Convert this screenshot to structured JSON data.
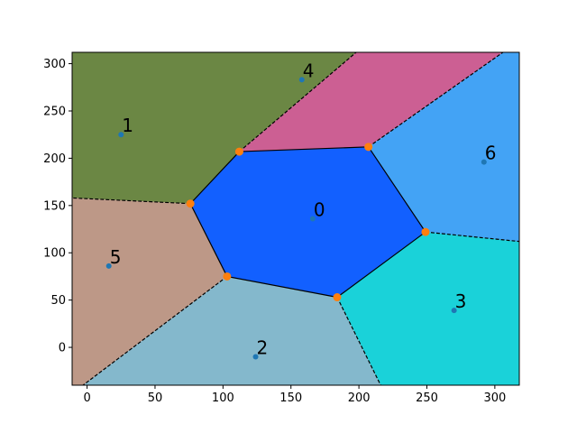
{
  "chart_data": {
    "type": "scatter",
    "subtype": "voronoi",
    "title": "",
    "xlabel": "",
    "ylabel": "",
    "xlim": [
      -11,
      318
    ],
    "ylim": [
      -40,
      312
    ],
    "xticks": [
      0,
      50,
      100,
      150,
      200,
      250,
      300
    ],
    "yticks": [
      0,
      50,
      100,
      150,
      200,
      250,
      300
    ],
    "grid": false,
    "colors": {
      "points": "#1f77b4",
      "vertices": "#ff7f0e",
      "edges": "#000000"
    },
    "points": [
      {
        "label": "0",
        "x": 166,
        "y": 136
      },
      {
        "label": "1",
        "x": 25,
        "y": 225
      },
      {
        "label": "2",
        "x": 124,
        "y": -10
      },
      {
        "label": "3",
        "x": 270,
        "y": 39
      },
      {
        "label": "4",
        "x": 158,
        "y": 283
      },
      {
        "label": "5",
        "x": 16,
        "y": 86
      },
      {
        "label": "6",
        "x": 292,
        "y": 196
      }
    ],
    "vertices": [
      {
        "x": 112,
        "y": 207
      },
      {
        "x": 207,
        "y": 212
      },
      {
        "x": 249,
        "y": 122
      },
      {
        "x": 184,
        "y": 53
      },
      {
        "x": 103,
        "y": 75
      },
      {
        "x": 76,
        "y": 152
      }
    ],
    "regions": [
      {
        "label": "0",
        "color": "#1260ff",
        "polygon": [
          [
            112,
            207
          ],
          [
            207,
            212
          ],
          [
            249,
            122
          ],
          [
            184,
            53
          ],
          [
            103,
            75
          ],
          [
            76,
            152
          ]
        ]
      },
      {
        "label": "1",
        "color": "#6b8744",
        "polygon": [
          [
            -11,
            312
          ],
          [
            198,
            312
          ],
          [
            112,
            207
          ],
          [
            76,
            152
          ],
          [
            -11,
            158
          ]
        ]
      },
      {
        "label": "4",
        "color": "#cc5f93",
        "polygon": [
          [
            198,
            312
          ],
          [
            306,
            312
          ],
          [
            207,
            212
          ],
          [
            112,
            207
          ]
        ]
      },
      {
        "label": "6",
        "color": "#43a3f5",
        "polygon": [
          [
            306,
            312
          ],
          [
            318,
            312
          ],
          [
            318,
            112
          ],
          [
            249,
            122
          ],
          [
            207,
            212
          ]
        ]
      },
      {
        "label": "3",
        "color": "#1ad2d9",
        "polygon": [
          [
            249,
            122
          ],
          [
            318,
            112
          ],
          [
            318,
            -40
          ],
          [
            216,
            -40
          ],
          [
            184,
            53
          ]
        ]
      },
      {
        "label": "2",
        "color": "#84b8cc",
        "polygon": [
          [
            184,
            53
          ],
          [
            216,
            -40
          ],
          [
            -3,
            -40
          ],
          [
            103,
            75
          ]
        ]
      },
      {
        "label": "5",
        "color": "#bd9887",
        "polygon": [
          [
            -11,
            158
          ],
          [
            76,
            152
          ],
          [
            103,
            75
          ],
          [
            -3,
            -40
          ],
          [
            -11,
            -40
          ]
        ]
      }
    ],
    "finite_edges": [
      [
        [
          112,
          207
        ],
        [
          207,
          212
        ]
      ],
      [
        [
          207,
          212
        ],
        [
          249,
          122
        ]
      ],
      [
        [
          249,
          122
        ],
        [
          184,
          53
        ]
      ],
      [
        [
          184,
          53
        ],
        [
          103,
          75
        ]
      ],
      [
        [
          103,
          75
        ],
        [
          76,
          152
        ]
      ],
      [
        [
          76,
          152
        ],
        [
          112,
          207
        ]
      ]
    ],
    "infinite_edges": [
      [
        [
          112,
          207
        ],
        [
          198,
          312
        ]
      ],
      [
        [
          207,
          212
        ],
        [
          306,
          312
        ]
      ],
      [
        [
          249,
          122
        ],
        [
          318,
          112
        ]
      ],
      [
        [
          184,
          53
        ],
        [
          216,
          -40
        ]
      ],
      [
        [
          103,
          75
        ],
        [
          -3,
          -40
        ]
      ],
      [
        [
          76,
          152
        ],
        [
          -11,
          158
        ]
      ]
    ]
  }
}
